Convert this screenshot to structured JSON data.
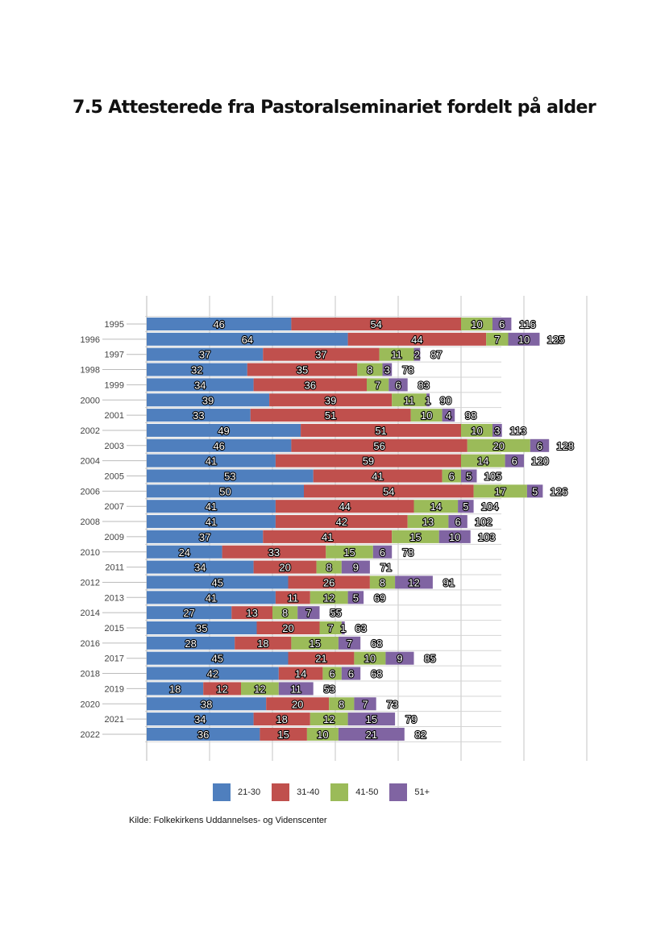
{
  "page": {
    "title": "7.5 Attesterede fra Pastoralseminariet fordelt på alder",
    "source": "Kilde: Folkekirkens Uddannelses- og Videnscenter"
  },
  "chart_data": {
    "type": "bar",
    "orientation": "horizontal",
    "stacked": true,
    "title": "7.5 Attesterede fra Pastoralseminariet fordelt på alder",
    "xlabel": "",
    "ylabel": "",
    "xlim": [
      0,
      140
    ],
    "grid": true,
    "legend_position": "bottom",
    "categories": [
      "1995",
      "1996",
      "1997",
      "1998",
      "1999",
      "2000",
      "2001",
      "2002",
      "2003",
      "2004",
      "2005",
      "2006",
      "2007",
      "2008",
      "2009",
      "2010",
      "2011",
      "2012",
      "2013",
      "2014",
      "2015",
      "2016",
      "2017",
      "2018",
      "2019",
      "2020",
      "2021",
      "2022"
    ],
    "series": [
      {
        "name": "21-30",
        "color": "#4f7fbe",
        "values": [
          46,
          64,
          37,
          32,
          34,
          39,
          33,
          49,
          46,
          41,
          53,
          50,
          41,
          41,
          37,
          24,
          34,
          45,
          41,
          27,
          35,
          28,
          45,
          42,
          18,
          38,
          34,
          36
        ]
      },
      {
        "name": "31-40",
        "color": "#c0504d",
        "values": [
          54,
          44,
          37,
          35,
          36,
          39,
          51,
          51,
          56,
          59,
          41,
          54,
          44,
          42,
          41,
          33,
          20,
          26,
          11,
          13,
          20,
          18,
          21,
          14,
          12,
          20,
          18,
          15
        ]
      },
      {
        "name": "41-50",
        "color": "#9bbb59",
        "values": [
          10,
          7,
          11,
          8,
          7,
          11,
          10,
          10,
          20,
          14,
          6,
          17,
          14,
          13,
          15,
          15,
          8,
          8,
          12,
          8,
          7,
          15,
          10,
          6,
          12,
          8,
          12,
          10
        ]
      },
      {
        "name": "51+",
        "color": "#8064a2",
        "values": [
          6,
          10,
          2,
          3,
          6,
          1,
          4,
          3,
          6,
          6,
          5,
          5,
          5,
          6,
          10,
          6,
          9,
          12,
          5,
          7,
          1,
          7,
          9,
          6,
          11,
          7,
          15,
          21
        ]
      }
    ],
    "totals": [
      116,
      125,
      87,
      78,
      83,
      90,
      98,
      113,
      128,
      120,
      105,
      126,
      104,
      102,
      103,
      78,
      71,
      91,
      69,
      55,
      63,
      68,
      85,
      68,
      53,
      73,
      79,
      82
    ]
  }
}
